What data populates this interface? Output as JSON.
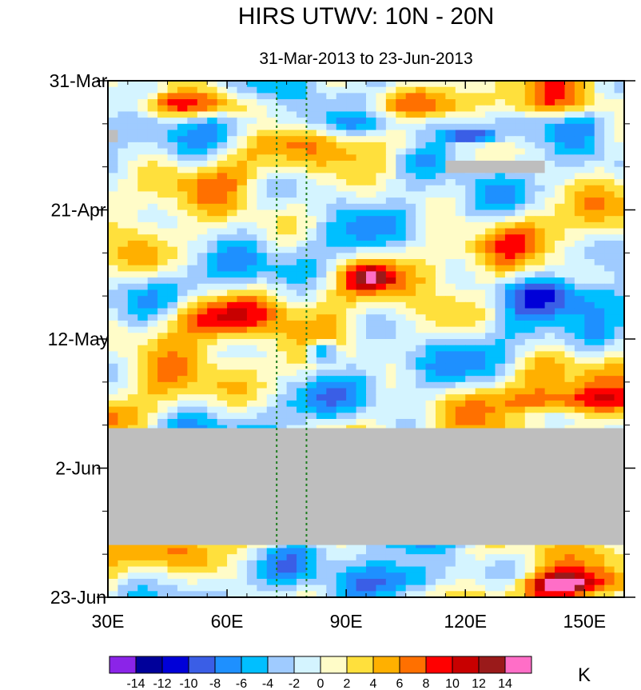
{
  "chart_data": {
    "type": "heatmap",
    "title": "HIRS UTWV: 10N - 20N",
    "subtitle": "31-Mar-2013 to 23-Jun-2013",
    "x_axis": {
      "label": "",
      "range": [
        30,
        160
      ],
      "units": "degrees east longitude",
      "ticks": [
        {
          "value": 30,
          "label": "30E"
        },
        {
          "value": 60,
          "label": "60E"
        },
        {
          "value": 90,
          "label": "90E"
        },
        {
          "value": 120,
          "label": "120E"
        },
        {
          "value": 150,
          "label": "150E"
        }
      ]
    },
    "y_axis": {
      "label": "",
      "range": [
        0,
        84
      ],
      "units": "days since 31-Mar-2013 (downward)",
      "ticks": [
        {
          "value": 0,
          "label": "31-Mar"
        },
        {
          "value": 21,
          "label": "21-Apr"
        },
        {
          "value": 42,
          "label": "12-May"
        },
        {
          "value": 63,
          "label": "2-Jun"
        },
        {
          "value": 84,
          "label": "23-Jun"
        }
      ],
      "minor_ticks": [
        7,
        14,
        28,
        35,
        49,
        56,
        70,
        77
      ]
    },
    "reference_lines": [
      {
        "axis": "x",
        "value": 72.5,
        "style": "dotted",
        "color": "#1e7d1e"
      },
      {
        "axis": "x",
        "value": 80,
        "style": "dotted",
        "color": "#1e7d1e"
      }
    ],
    "missing_regions": [
      {
        "lon": [
          30,
          160
        ],
        "day": [
          56.5,
          75.5
        ]
      },
      {
        "lon": [
          115,
          140
        ],
        "day": [
          13,
          15
        ]
      },
      {
        "lon": [
          30,
          32.5
        ],
        "day": [
          8,
          10
        ]
      }
    ],
    "anomaly_features": [
      {
        "lon": [
          30,
          70
        ],
        "day": [
          2,
          6
        ],
        "value": 8
      },
      {
        "lon": [
          80,
          125
        ],
        "day": [
          5,
          9
        ],
        "value": -8
      },
      {
        "lon": [
          115,
          128
        ],
        "day": [
          8,
          10
        ],
        "value": -12
      },
      {
        "lon": [
          130,
          160
        ],
        "day": [
          2,
          6
        ],
        "value": 6
      },
      {
        "lon": [
          40,
          70
        ],
        "day": [
          35,
          42
        ],
        "value": 8
      },
      {
        "lon": [
          90,
          102
        ],
        "day": [
          30,
          34
        ],
        "value": 8
      },
      {
        "lon": [
          80,
          88
        ],
        "day": [
          42,
          46
        ],
        "value": -12
      },
      {
        "lon": [
          130,
          160
        ],
        "day": [
          32,
          38
        ],
        "value": -8
      },
      {
        "lon": [
          130,
          160
        ],
        "day": [
          50,
          54
        ],
        "value": 8
      },
      {
        "lon": [
          135,
          155
        ],
        "day": [
          80,
          84
        ],
        "value": 12
      },
      {
        "lon": [
          90,
          120
        ],
        "day": [
          78,
          84
        ],
        "value": -8
      }
    ],
    "colorbar": {
      "units": "K",
      "levels": [
        -14,
        -12,
        -10,
        -8,
        -6,
        -4,
        -2,
        0,
        2,
        4,
        6,
        8,
        10,
        12,
        14
      ],
      "labels": [
        "-14",
        "-12",
        "-10",
        "-8",
        "-6",
        "-4",
        "-2",
        "0",
        "2",
        "4",
        "6",
        "8",
        "10",
        "12",
        "14"
      ],
      "colors": [
        "#8b24e8",
        "#00009a",
        "#0000d8",
        "#3a5ee6",
        "#1e90ff",
        "#00bfff",
        "#9fcbff",
        "#d4f4ff",
        "#fffcc8",
        "#ffe03c",
        "#ffb000",
        "#ff7000",
        "#ff0000",
        "#c80000",
        "#9a1a1a",
        "#ff6ec7"
      ]
    },
    "missing_color": "#bebebe"
  }
}
